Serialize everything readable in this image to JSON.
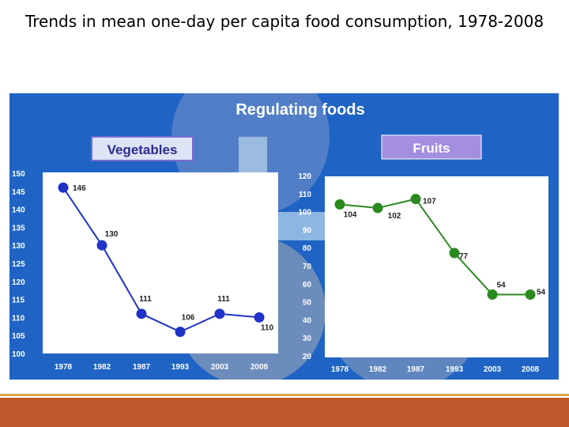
{
  "title": "Trends in mean one-day per capita food consumption, 1978-2008",
  "panel": {
    "heading": "Regulating foods",
    "left_chart_label": "Vegetables",
    "right_chart_label": "Fruits"
  },
  "colors": {
    "panel_bg": "#1f64c4",
    "vegetables_line": "#2032c8",
    "fruits_line": "#2a8a1e",
    "left_label_bg": "#dde4f6",
    "left_label_border": "#7a6ad0",
    "right_label_bg": "#a48ee0",
    "bottom_bar": "#c0572a",
    "bottom_line": "#e2a24b"
  },
  "chart_data": [
    {
      "type": "line",
      "title": "Vegetables",
      "categories": [
        "1978",
        "1982",
        "1987",
        "1993",
        "2003",
        "2008"
      ],
      "series": [
        {
          "name": "Vegetables",
          "values": [
            146,
            130,
            111,
            106,
            111,
            110
          ]
        }
      ],
      "ylim": [
        100,
        150
      ],
      "yticks": [
        100,
        105,
        110,
        115,
        120,
        125,
        130,
        135,
        140,
        145,
        150
      ],
      "xlabel": "",
      "ylabel": "",
      "data_labels": [
        "146",
        "130",
        "111",
        "106",
        "111",
        "110"
      ]
    },
    {
      "type": "line",
      "title": "Fruits",
      "categories": [
        "1978",
        "1982",
        "1987",
        "1993",
        "2003",
        "2008"
      ],
      "series": [
        {
          "name": "Fruits",
          "values": [
            104,
            102,
            107,
            77,
            54,
            54
          ]
        }
      ],
      "ylim": [
        20,
        120
      ],
      "yticks": [
        20,
        30,
        40,
        50,
        60,
        70,
        80,
        90,
        100,
        110,
        120
      ],
      "xlabel": "",
      "ylabel": "",
      "data_labels": [
        "104",
        "102",
        "107",
        "77",
        "54",
        "54"
      ]
    }
  ]
}
